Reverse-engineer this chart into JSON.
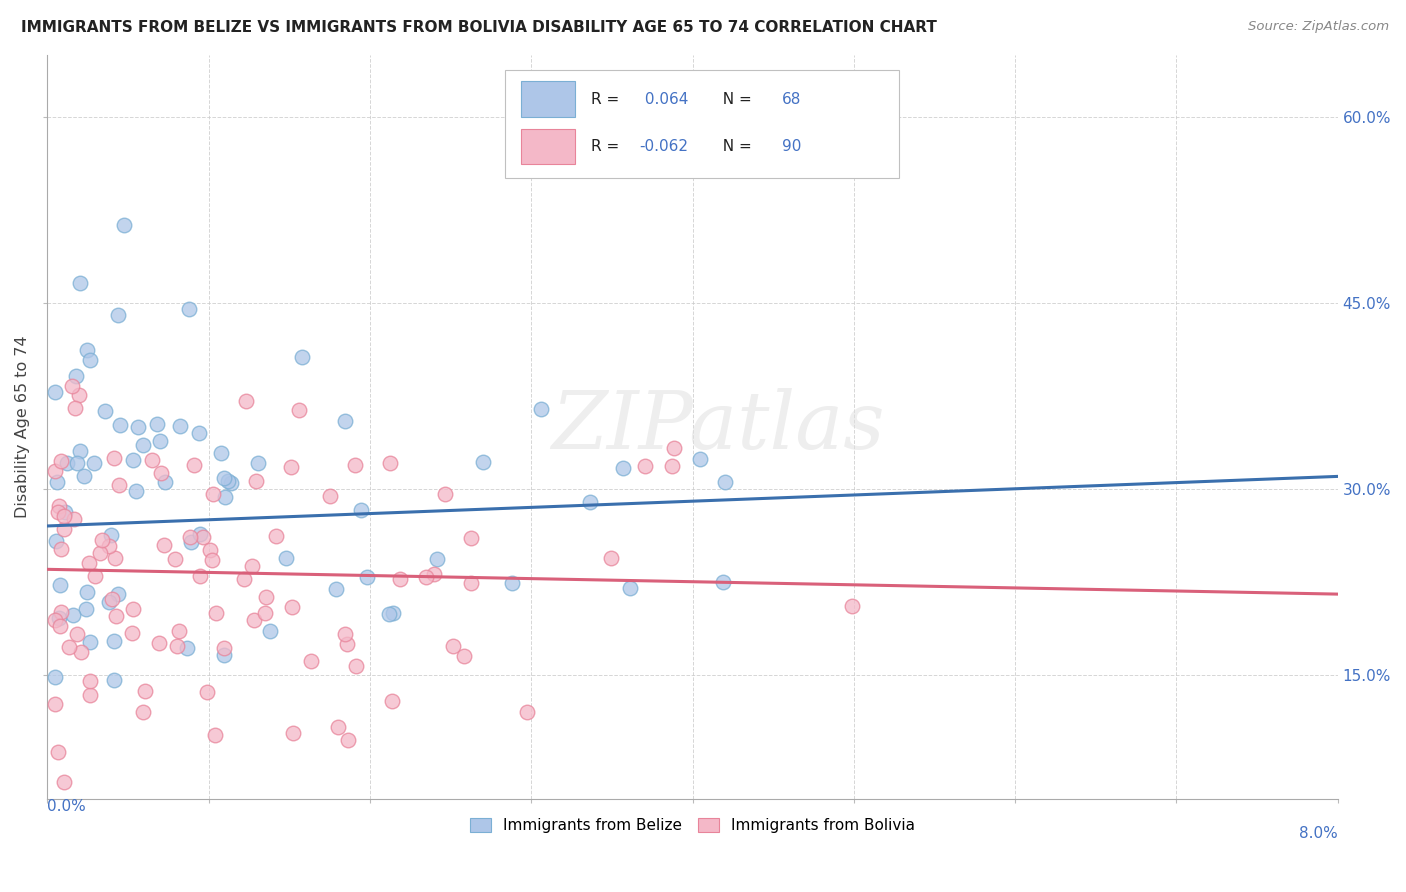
{
  "title": "IMMIGRANTS FROM BELIZE VS IMMIGRANTS FROM BOLIVIA DISABILITY AGE 65 TO 74 CORRELATION CHART",
  "source": "Source: ZipAtlas.com",
  "ylabel": "Disability Age 65 to 74",
  "xmin": 0.0,
  "xmax": 0.08,
  "ymin": 0.05,
  "ymax": 0.65,
  "belize_fill": "#aec6e8",
  "belize_edge": "#7bafd4",
  "bolivia_fill": "#f4b8c8",
  "bolivia_edge": "#e8849a",
  "belize_line_color": "#3a6fad",
  "bolivia_line_color": "#d9607a",
  "legend_color": "#4472c4",
  "legend_belize_r": " 0.064",
  "legend_belize_n": "68",
  "legend_bolivia_r": "-0.062",
  "legend_bolivia_n": "90",
  "watermark": "ZIPatlas",
  "grid_color": "#cccccc",
  "right_axis_color": "#4472c4"
}
